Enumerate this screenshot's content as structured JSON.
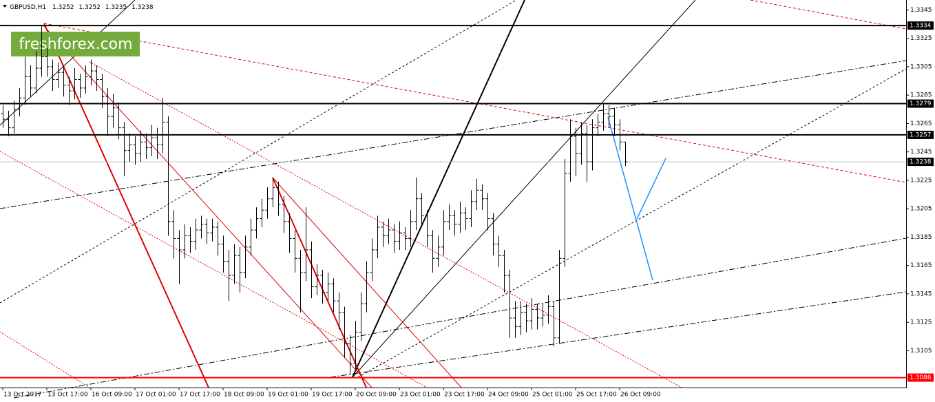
{
  "chart_data": {
    "type": "ohlc",
    "title": "GBPUSD,H1",
    "watermark": "freshforex.com",
    "color": "#000000",
    "ylim": [
      1.3079,
      1.3352
    ],
    "yticks": [
      1.3345,
      1.3325,
      1.3305,
      1.3285,
      1.3265,
      1.3245,
      1.3225,
      1.3205,
      1.3185,
      1.3165,
      1.3145,
      1.3125,
      1.3105
    ],
    "xlim": [
      0,
      164
    ],
    "xticks": [
      {
        "value": 0,
        "label": "13 Oct 2017"
      },
      {
        "value": 8,
        "label": "13 Oct 17:00"
      },
      {
        "value": 16,
        "label": "16 Oct 09:00"
      },
      {
        "value": 24,
        "label": "17 Oct 01:00"
      },
      {
        "value": 32,
        "label": "17 Oct 17:00"
      },
      {
        "value": 40,
        "label": "18 Oct 09:00"
      },
      {
        "value": 48,
        "label": "19 Oct 01:00"
      },
      {
        "value": 56,
        "label": "19 Oct 17:00"
      },
      {
        "value": 64,
        "label": "20 Oct 09:00"
      },
      {
        "value": 72,
        "label": "23 Oct 01:00"
      },
      {
        "value": 80,
        "label": "23 Oct 17:00"
      },
      {
        "value": 88,
        "label": "24 Oct 09:00"
      },
      {
        "value": 96,
        "label": "25 Oct 01:00"
      },
      {
        "value": 104,
        "label": "25 Oct 17:00"
      },
      {
        "value": 112,
        "label": "26 Oct 09:00"
      }
    ],
    "levels": [
      {
        "value": 1.3334,
        "color": "#000000",
        "label_color": "#000000"
      },
      {
        "value": 1.3279,
        "color": "#000000",
        "label_color": "#000000"
      },
      {
        "value": 1.3257,
        "color": "#000000",
        "label_color": "#000000"
      },
      {
        "value": 1.3238,
        "color": "#c0c0c0",
        "label_color": "#000000"
      },
      {
        "value": 1.3086,
        "color": "#ff0000",
        "label_color": "#ff0000"
      }
    ],
    "bars": [
      [
        1.3272,
        1.3278,
        1.3262,
        1.3268
      ],
      [
        1.3268,
        1.3274,
        1.3256,
        1.3262
      ],
      [
        1.3262,
        1.3281,
        1.3258,
        1.3275
      ],
      [
        1.3275,
        1.329,
        1.327,
        1.3283
      ],
      [
        1.3283,
        1.3312,
        1.3278,
        1.3298
      ],
      [
        1.3298,
        1.3306,
        1.3284,
        1.329
      ],
      [
        1.329,
        1.3316,
        1.3286,
        1.3304
      ],
      [
        1.3304,
        1.3334,
        1.3298,
        1.3312
      ],
      [
        1.3312,
        1.3318,
        1.3298,
        1.3305
      ],
      [
        1.3305,
        1.331,
        1.3288,
        1.3296
      ],
      [
        1.3296,
        1.3308,
        1.329,
        1.3301
      ],
      [
        1.3301,
        1.3306,
        1.3284,
        1.3292
      ],
      [
        1.3292,
        1.3298,
        1.3278,
        1.3288
      ],
      [
        1.3288,
        1.3304,
        1.3282,
        1.3296
      ],
      [
        1.3296,
        1.33,
        1.3283,
        1.329
      ],
      [
        1.329,
        1.3306,
        1.3286,
        1.3298
      ],
      [
        1.3298,
        1.331,
        1.3292,
        1.3302
      ],
      [
        1.3302,
        1.3306,
        1.3288,
        1.3296
      ],
      [
        1.3296,
        1.33,
        1.3276,
        1.3284
      ],
      [
        1.3284,
        1.329,
        1.3256,
        1.327
      ],
      [
        1.327,
        1.3286,
        1.3262,
        1.3276
      ],
      [
        1.3276,
        1.328,
        1.3254,
        1.3262
      ],
      [
        1.3262,
        1.3266,
        1.3228,
        1.3246
      ],
      [
        1.3246,
        1.3258,
        1.3238,
        1.325
      ],
      [
        1.325,
        1.3256,
        1.3236,
        1.3244
      ],
      [
        1.3244,
        1.326,
        1.3238,
        1.3252
      ],
      [
        1.3252,
        1.3258,
        1.324,
        1.3248
      ],
      [
        1.3248,
        1.3264,
        1.3242,
        1.3255
      ],
      [
        1.3255,
        1.3262,
        1.324,
        1.325
      ],
      [
        1.325,
        1.3283,
        1.3244,
        1.3266
      ],
      [
        1.3266,
        1.327,
        1.3186,
        1.3196
      ],
      [
        1.3196,
        1.3204,
        1.317,
        1.3184
      ],
      [
        1.3184,
        1.319,
        1.3152,
        1.3176
      ],
      [
        1.3176,
        1.3194,
        1.317,
        1.3186
      ],
      [
        1.3186,
        1.3192,
        1.3174,
        1.3182
      ],
      [
        1.3182,
        1.3198,
        1.3176,
        1.319
      ],
      [
        1.319,
        1.32,
        1.3184,
        1.3194
      ],
      [
        1.3194,
        1.3198,
        1.318,
        1.3188
      ],
      [
        1.3188,
        1.3198,
        1.3182,
        1.3192
      ],
      [
        1.3192,
        1.3196,
        1.3172,
        1.318
      ],
      [
        1.318,
        1.3186,
        1.316,
        1.3168
      ],
      [
        1.3168,
        1.3176,
        1.314,
        1.3158
      ],
      [
        1.3158,
        1.318,
        1.3152,
        1.3172
      ],
      [
        1.3172,
        1.3178,
        1.3146,
        1.316
      ],
      [
        1.316,
        1.3186,
        1.3156,
        1.3178
      ],
      [
        1.3178,
        1.3198,
        1.3172,
        1.319
      ],
      [
        1.319,
        1.3206,
        1.3184,
        1.3198
      ],
      [
        1.3198,
        1.3212,
        1.3192,
        1.3204
      ],
      [
        1.3204,
        1.322,
        1.3198,
        1.3212
      ],
      [
        1.3212,
        1.3227,
        1.3206,
        1.322
      ],
      [
        1.322,
        1.3224,
        1.32,
        1.3208
      ],
      [
        1.3208,
        1.3214,
        1.3188,
        1.3196
      ],
      [
        1.3196,
        1.3202,
        1.3174,
        1.3184
      ],
      [
        1.3184,
        1.319,
        1.316,
        1.317
      ],
      [
        1.317,
        1.3176,
        1.3132,
        1.316
      ],
      [
        1.316,
        1.3206,
        1.3154,
        1.3176
      ],
      [
        1.3176,
        1.3182,
        1.3142,
        1.315
      ],
      [
        1.315,
        1.3166,
        1.3144,
        1.3158
      ],
      [
        1.3158,
        1.3162,
        1.3138,
        1.3146
      ],
      [
        1.3146,
        1.316,
        1.314,
        1.3152
      ],
      [
        1.3152,
        1.3156,
        1.3132,
        1.314
      ],
      [
        1.314,
        1.3146,
        1.312,
        1.3132
      ],
      [
        1.3132,
        1.3136,
        1.31,
        1.311
      ],
      [
        1.311,
        1.3116,
        1.3088,
        1.3096
      ],
      [
        1.3096,
        1.3126,
        1.3092,
        1.3118
      ],
      [
        1.3118,
        1.3146,
        1.3112,
        1.3138
      ],
      [
        1.3138,
        1.3168,
        1.3132,
        1.316
      ],
      [
        1.316,
        1.3184,
        1.3154,
        1.3176
      ],
      [
        1.3176,
        1.32,
        1.317,
        1.3192
      ],
      [
        1.3192,
        1.3196,
        1.3178,
        1.3186
      ],
      [
        1.3186,
        1.3198,
        1.318,
        1.319
      ],
      [
        1.319,
        1.3194,
        1.3174,
        1.3182
      ],
      [
        1.3182,
        1.3196,
        1.3176,
        1.3188
      ],
      [
        1.3188,
        1.3192,
        1.3176,
        1.3184
      ],
      [
        1.3184,
        1.3204,
        1.3178,
        1.3196
      ],
      [
        1.3196,
        1.3227,
        1.319,
        1.3212
      ],
      [
        1.3212,
        1.3216,
        1.3192,
        1.32
      ],
      [
        1.32,
        1.3204,
        1.3178,
        1.3186
      ],
      [
        1.3186,
        1.319,
        1.316,
        1.317
      ],
      [
        1.317,
        1.3186,
        1.3164,
        1.3178
      ],
      [
        1.3178,
        1.3204,
        1.3172,
        1.3196
      ],
      [
        1.3196,
        1.3208,
        1.319,
        1.32
      ],
      [
        1.32,
        1.3204,
        1.3186,
        1.3194
      ],
      [
        1.3194,
        1.321,
        1.3188,
        1.3202
      ],
      [
        1.3202,
        1.3206,
        1.319,
        1.3198
      ],
      [
        1.3198,
        1.3218,
        1.3192,
        1.321
      ],
      [
        1.321,
        1.3226,
        1.3204,
        1.3218
      ],
      [
        1.3218,
        1.3222,
        1.3204,
        1.3212
      ],
      [
        1.3212,
        1.3216,
        1.319,
        1.3198
      ],
      [
        1.3198,
        1.3202,
        1.3172,
        1.318
      ],
      [
        1.318,
        1.3186,
        1.3164,
        1.3172
      ],
      [
        1.3172,
        1.3176,
        1.3146,
        1.3158
      ],
      [
        1.3158,
        1.3162,
        1.3114,
        1.3128
      ],
      [
        1.3128,
        1.314,
        1.3114,
        1.3122
      ],
      [
        1.3122,
        1.314,
        1.3116,
        1.3132
      ],
      [
        1.3132,
        1.3138,
        1.3118,
        1.3126
      ],
      [
        1.3126,
        1.3142,
        1.312,
        1.3134
      ],
      [
        1.3134,
        1.3138,
        1.312,
        1.3128
      ],
      [
        1.3128,
        1.3138,
        1.3122,
        1.313
      ],
      [
        1.313,
        1.3144,
        1.3124,
        1.3136
      ],
      [
        1.3136,
        1.314,
        1.3108,
        1.3114
      ],
      [
        1.3114,
        1.3176,
        1.311,
        1.317
      ],
      [
        1.317,
        1.324,
        1.3164,
        1.323
      ],
      [
        1.323,
        1.3268,
        1.3224,
        1.3256
      ],
      [
        1.3256,
        1.3262,
        1.3228,
        1.3244
      ],
      [
        1.3244,
        1.3266,
        1.3236,
        1.3258
      ],
      [
        1.3258,
        1.3264,
        1.3224,
        1.3238
      ],
      [
        1.3238,
        1.3268,
        1.3232,
        1.3262
      ],
      [
        1.3262,
        1.3272,
        1.3256,
        1.3266
      ],
      [
        1.3266,
        1.3279,
        1.326,
        1.3272
      ],
      [
        1.3272,
        1.3278,
        1.3262,
        1.327
      ],
      [
        1.327,
        1.3276,
        1.3256,
        1.3264
      ],
      [
        1.3264,
        1.3268,
        1.3246,
        1.3252
      ],
      [
        1.3252,
        1.3252,
        1.3235,
        1.3238
      ]
    ]
  }
}
